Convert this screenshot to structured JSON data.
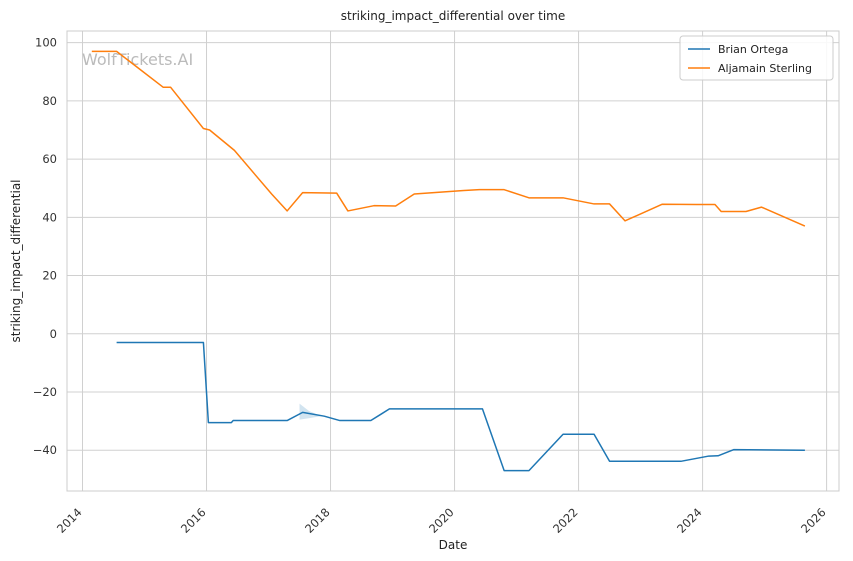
{
  "chart_data": {
    "type": "line",
    "title": "striking_impact_differential over time",
    "xlabel": "Date",
    "ylabel": "striking_impact_differential",
    "xlim": [
      2013.75,
      2026.2
    ],
    "ylim": [
      -54,
      104
    ],
    "x_ticks": [
      2014,
      2016,
      2018,
      2020,
      2022,
      2024,
      2026
    ],
    "x_tick_labels": [
      "2014",
      "2016",
      "2018",
      "2020",
      "2022",
      "2024",
      "2026"
    ],
    "y_ticks": [
      -40,
      -20,
      0,
      20,
      40,
      60,
      80,
      100
    ],
    "y_tick_labels": [
      "−40",
      "−20",
      "0",
      "20",
      "40",
      "60",
      "80",
      "100"
    ],
    "grid": true,
    "legend_position": "top-right",
    "watermark": "WolfTickets.AI",
    "colors": {
      "Brian Ortega": "#1f77b4",
      "Aljamain Sterling": "#ff7f0e"
    },
    "series": [
      {
        "name": "Brian Ortega",
        "x": [
          2014.55,
          2015.95,
          2016.03,
          2016.4,
          2016.43,
          2017.3,
          2017.55,
          2017.9,
          2018.15,
          2018.65,
          2018.95,
          2020.45,
          2020.8,
          2021.2,
          2021.75,
          2022.25,
          2022.5,
          2023.65,
          2024.1,
          2024.25,
          2024.5,
          2025.65
        ],
        "y": [
          -3,
          -3,
          -30.5,
          -30.5,
          -29.8,
          -29.8,
          -27,
          -28.3,
          -29.8,
          -29.8,
          -25.8,
          -25.8,
          -47,
          -47,
          -34.5,
          -34.5,
          -43.8,
          -43.8,
          -42,
          -41.9,
          -39.8,
          -40
        ],
        "band": {
          "x": [
            2017.5,
            2017.65,
            2017.85
          ],
          "upper": [
            -24,
            -26.5,
            -28.3
          ],
          "lower": [
            -29.5,
            -29,
            -28.3
          ]
        }
      },
      {
        "name": "Aljamain Sterling",
        "x": [
          2014.15,
          2014.55,
          2015.3,
          2015.42,
          2015.95,
          2016.05,
          2016.45,
          2017.05,
          2017.3,
          2017.55,
          2018.1,
          2018.28,
          2018.7,
          2019.05,
          2019.35,
          2020.15,
          2020.4,
          2020.8,
          2021.2,
          2021.75,
          2022.25,
          2022.5,
          2022.75,
          2023.35,
          2023.9,
          2024.2,
          2024.3,
          2024.7,
          2024.95,
          2025.65
        ],
        "y": [
          97,
          97,
          84.7,
          84.7,
          70.5,
          70,
          63,
          48,
          42.2,
          48.5,
          48.3,
          42.2,
          44,
          43.9,
          48,
          49.2,
          49.5,
          49.5,
          46.7,
          46.7,
          44.6,
          44.6,
          38.8,
          44.5,
          44.4,
          44.4,
          42,
          42,
          43.5,
          37
        ]
      }
    ]
  }
}
